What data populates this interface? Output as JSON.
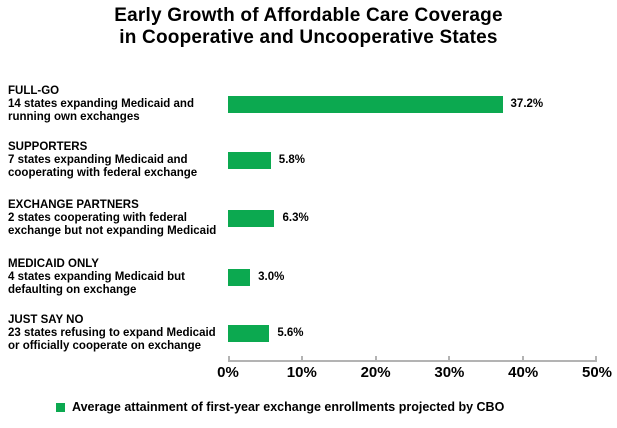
{
  "title": {
    "line1": "Early Growth of Affordable Care Coverage",
    "line2": "in Cooperative and Uncooperative States"
  },
  "chart_data": {
    "type": "bar",
    "orientation": "horizontal",
    "title": "Early Growth of Affordable Care Coverage in Cooperative and Uncooperative States",
    "categories": [
      "FULL-GO",
      "SUPPORTERS",
      "EXCHANGE PARTNERS",
      "MEDICAID ONLY",
      "JUST SAY NO"
    ],
    "values": [
      37.2,
      5.8,
      6.3,
      3.0,
      5.6
    ],
    "xlim": [
      0,
      50
    ],
    "x_tick_values": [
      0,
      10,
      20,
      30,
      40,
      50
    ],
    "x_tick_labels": [
      "0%",
      "10%",
      "20%",
      "30%",
      "40%",
      "50%"
    ],
    "grid": false,
    "bar_color": "#0CA950",
    "axis_color": "#B3B3B3",
    "rows": [
      {
        "heading": "FULL-GO",
        "desc_line1": "14 states expanding Medicaid and",
        "desc_line2": "running own exchanges",
        "value": 37.2,
        "value_label": "37.2%"
      },
      {
        "heading": "SUPPORTERS",
        "desc_line1": "7 states expanding Medicaid and",
        "desc_line2": "cooperating with federal exchange",
        "value": 5.8,
        "value_label": "5.8%"
      },
      {
        "heading": "EXCHANGE PARTNERS",
        "desc_line1": "2 states cooperating with federal",
        "desc_line2": "exchange but not expanding Medicaid",
        "value": 6.3,
        "value_label": "6.3%"
      },
      {
        "heading": "MEDICAID ONLY",
        "desc_line1": "4 states expanding Medicaid but",
        "desc_line2": "defaulting on exchange",
        "value": 3.0,
        "value_label": "3.0%"
      },
      {
        "heading": "JUST SAY NO",
        "desc_line1": "23 states refusing to expand Medicaid",
        "desc_line2": "or officially cooperate on exchange",
        "value": 5.6,
        "value_label": "5.6%"
      }
    ],
    "legend": {
      "swatch_color": "#0CA950",
      "label": "Average attainment of first-year exchange enrollments projected by CBO",
      "position": "bottom-left"
    }
  }
}
